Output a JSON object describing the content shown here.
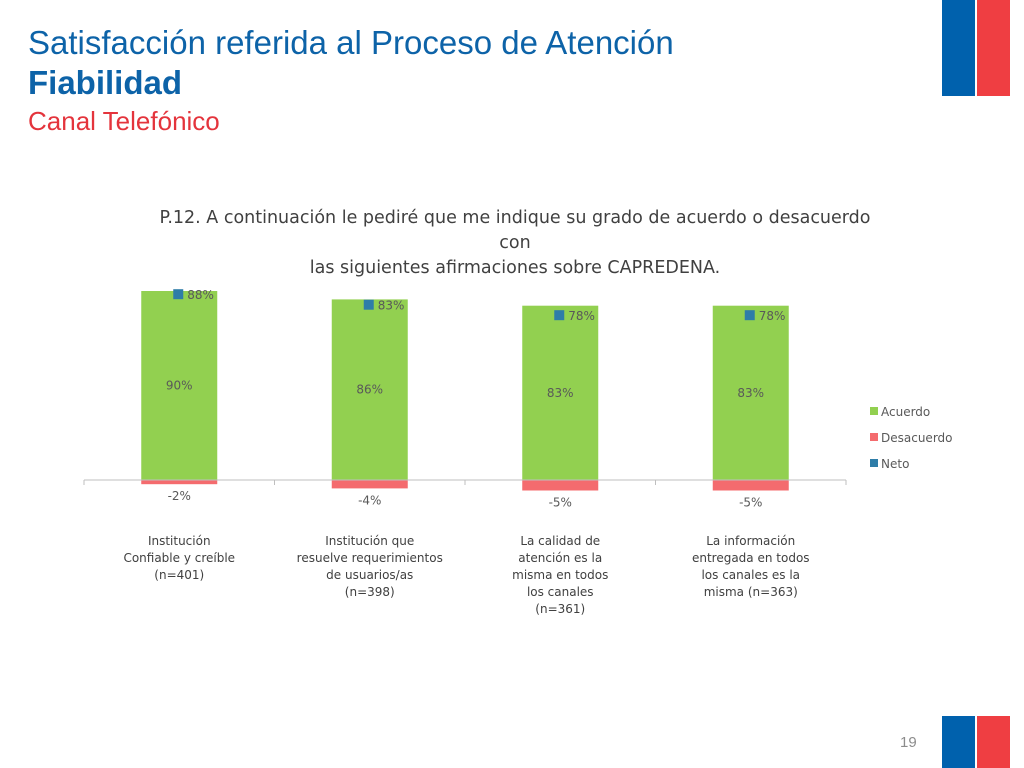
{
  "slide": {
    "title_line1": "Satisfacción referida al Proceso de Atención",
    "title_line2": "Fiabilidad",
    "title_line3": "Canal Telefónico",
    "page_number": "19"
  },
  "colors": {
    "flag_blue": "#0061ad",
    "flag_red": "#ef3e42",
    "acuerdo": "#92d050",
    "desacuerdo": "#f46b6e",
    "neto": "#2e7da8"
  },
  "chart_data": {
    "type": "bar",
    "title": "P.12. A continuación le pediré que me indique su grado de acuerdo o desacuerdo con las siguientes afirmaciones sobre CAPREDENA.",
    "title_lines": [
      "P.12. A continuación le pediré que me indique su grado de acuerdo o desacuerdo con",
      "las siguientes afirmaciones sobre CAPREDENA."
    ],
    "categories": [
      [
        "Institución",
        "Confiable y creíble",
        "(n=401)"
      ],
      [
        "Institución que",
        "resuelve requerimientos",
        "de usuarios/as",
        "(n=398)"
      ],
      [
        "La calidad de",
        "atención es la",
        "misma en todos",
        "los canales",
        "(n=361)"
      ],
      [
        "La información",
        "entregada en todos",
        "los canales es la",
        "misma (n=363)"
      ]
    ],
    "series": [
      {
        "name": "Acuerdo",
        "values": [
          90,
          86,
          83,
          83
        ],
        "labels": [
          "90%",
          "86%",
          "83%",
          "83%"
        ]
      },
      {
        "name": "Desacuerdo",
        "values": [
          -2,
          -4,
          -5,
          -5
        ],
        "labels": [
          "-2%",
          "-4%",
          "-5%",
          "-5%"
        ]
      },
      {
        "name": "Neto",
        "values": [
          88,
          83,
          78,
          78
        ],
        "labels": [
          "88%",
          "83%",
          "78%",
          "78%"
        ]
      }
    ],
    "ylim": [
      -5,
      90
    ],
    "legend_position": "right",
    "grid": false
  }
}
